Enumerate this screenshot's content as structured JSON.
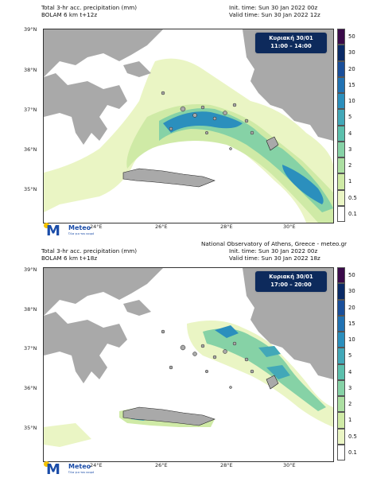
{
  "credit": "National Observatory of Athens, Greece - meteo.gr",
  "legend": {
    "levels": [
      "50",
      "30",
      "20",
      "15",
      "10",
      "5",
      "4",
      "3",
      "2",
      "1",
      "0.5",
      "0.1"
    ],
    "colors": [
      "#3a0a4a",
      "#0a2a66",
      "#1a4f9a",
      "#2172b3",
      "#2b8fbd",
      "#42a8b8",
      "#5cc0ad",
      "#86d2a6",
      "#acdfa2",
      "#cfeaa6",
      "#eaf5c4",
      "#ffffff"
    ]
  },
  "map": {
    "lat_labels": [
      "39°N",
      "38°N",
      "37°N",
      "36°N",
      "35°N"
    ],
    "lon_labels": [
      "24°E",
      "26°E",
      "28°E",
      "30°E"
    ],
    "land_color": "#a9a9a9",
    "sea_color": "#ffffff"
  },
  "logo": {
    "name": "Meteo",
    "tagline": "Όλα για τον καιρό"
  },
  "panels": [
    {
      "title": "Total 3-hr acc. precipitation (mm)",
      "model": "BOLAM 6 km t+12z",
      "init_time": "Init. time: Sun 30 Jan 2022 00z",
      "valid_time": "Valid time: Sun 30 Jan 2022 12z",
      "day": "Κυριακή 30/01",
      "hours": "11:00 – 14:00"
    },
    {
      "title": "Total 3-hr acc. precipitation (mm)",
      "model": "BOLAM 6 km t+18z",
      "init_time": "Init. time: Sun 30 Jan 2022 00z",
      "valid_time": "Valid time: Sun 30 Jan 2022 18z",
      "day": "Κυριακή 30/01",
      "hours": "17:00 – 20:00"
    }
  ]
}
